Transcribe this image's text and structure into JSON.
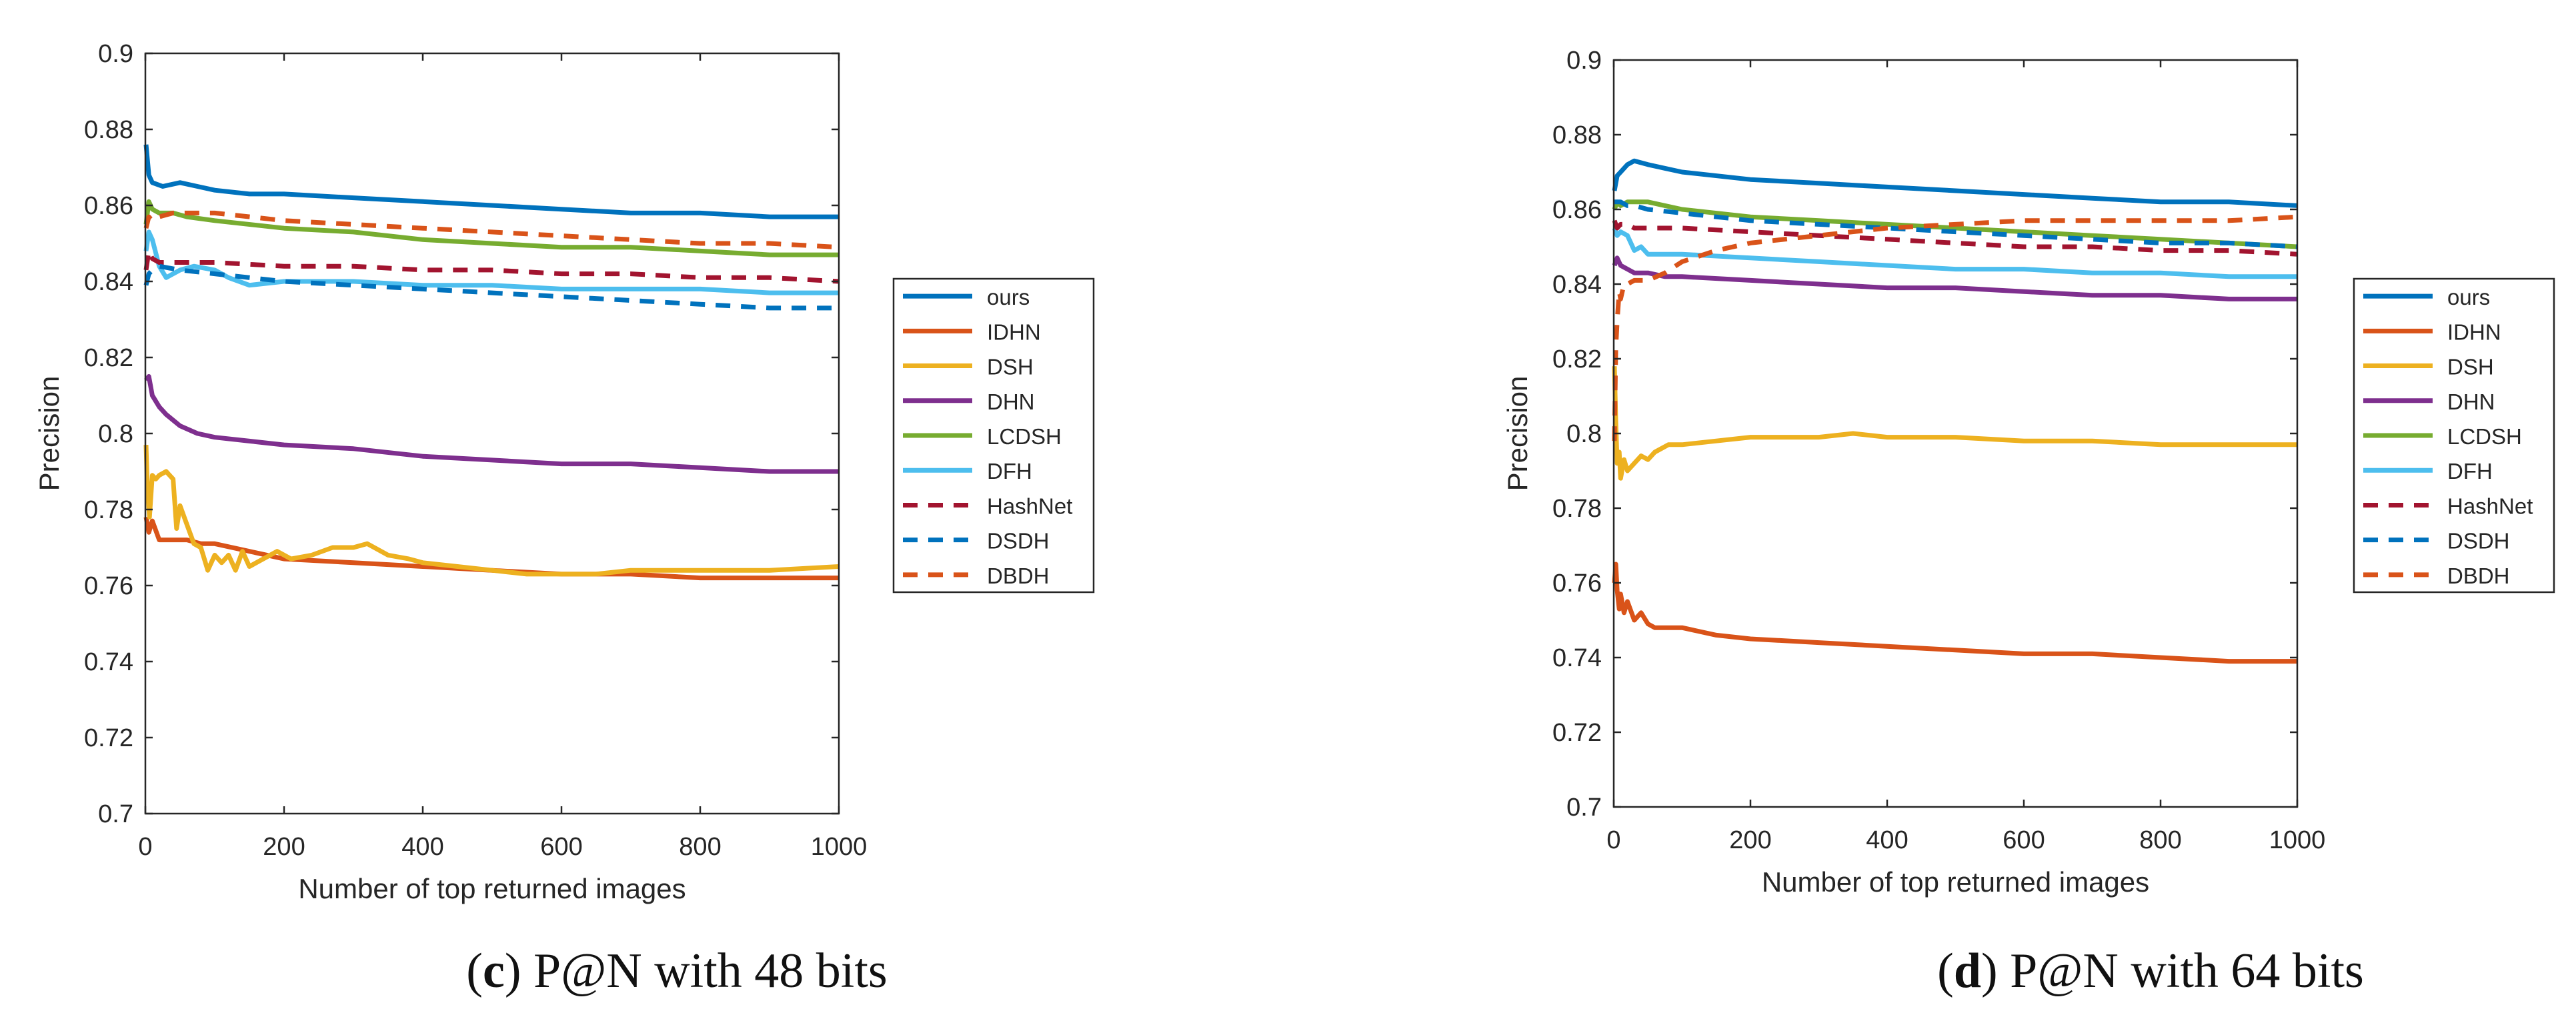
{
  "figure": {
    "panels": [
      {
        "caption_letter": "c",
        "caption_text": ") P@N with 48 bits"
      },
      {
        "caption_letter": "d",
        "caption_text": ") P@N with 64 bits"
      }
    ]
  },
  "chart_data": [
    {
      "type": "line",
      "title": "",
      "xlabel": "Number of top returned images",
      "ylabel": "Precision",
      "xlim": [
        0,
        1000
      ],
      "ylim": [
        0.7,
        0.9
      ],
      "xticks": [
        0,
        200,
        400,
        600,
        800,
        1000
      ],
      "xtick_labels": [
        "0",
        "200",
        "400",
        "600",
        "800",
        "1000"
      ],
      "yticks": [
        0.7,
        0.72,
        0.74,
        0.76,
        0.78,
        0.8,
        0.82,
        0.84,
        0.86,
        0.88,
        0.9
      ],
      "ytick_labels": [
        "0.7",
        "0.72",
        "0.74",
        "0.76",
        "0.78",
        "0.8",
        "0.82",
        "0.84",
        "0.86",
        "0.88",
        "0.9"
      ],
      "grid": false,
      "legend": "outside-right",
      "series": [
        {
          "name": "ours",
          "color": "#0072bd",
          "style": "solid",
          "x": [
            1,
            5,
            10,
            25,
            50,
            75,
            100,
            150,
            200,
            300,
            400,
            500,
            600,
            700,
            800,
            900,
            1000
          ],
          "y": [
            0.876,
            0.868,
            0.866,
            0.865,
            0.866,
            0.865,
            0.864,
            0.863,
            0.863,
            0.862,
            0.861,
            0.86,
            0.859,
            0.858,
            0.858,
            0.857,
            0.857
          ]
        },
        {
          "name": "IDHN",
          "color": "#d95319",
          "style": "solid",
          "x": [
            1,
            5,
            10,
            20,
            40,
            60,
            80,
            100,
            150,
            200,
            300,
            400,
            500,
            600,
            700,
            800,
            900,
            1000
          ],
          "y": [
            0.778,
            0.774,
            0.777,
            0.772,
            0.772,
            0.772,
            0.771,
            0.771,
            0.769,
            0.767,
            0.766,
            0.765,
            0.764,
            0.763,
            0.763,
            0.762,
            0.762,
            0.762
          ]
        },
        {
          "name": "DSH",
          "color": "#edb120",
          "style": "solid",
          "x": [
            1,
            3,
            6,
            10,
            15,
            20,
            30,
            40,
            45,
            50,
            60,
            70,
            80,
            90,
            100,
            110,
            120,
            130,
            140,
            150,
            170,
            190,
            210,
            240,
            270,
            300,
            320,
            350,
            380,
            400,
            450,
            500,
            550,
            600,
            650,
            700,
            800,
            900,
            1000
          ],
          "y": [
            0.797,
            0.785,
            0.778,
            0.789,
            0.788,
            0.789,
            0.79,
            0.788,
            0.775,
            0.781,
            0.776,
            0.771,
            0.77,
            0.764,
            0.768,
            0.766,
            0.768,
            0.764,
            0.769,
            0.765,
            0.767,
            0.769,
            0.767,
            0.768,
            0.77,
            0.77,
            0.771,
            0.768,
            0.767,
            0.766,
            0.765,
            0.764,
            0.763,
            0.763,
            0.763,
            0.764,
            0.764,
            0.764,
            0.765
          ]
        },
        {
          "name": "DHN",
          "color": "#7e2f8e",
          "style": "solid",
          "x": [
            1,
            5,
            10,
            20,
            30,
            50,
            75,
            100,
            150,
            200,
            300,
            400,
            500,
            600,
            700,
            800,
            900,
            1000
          ],
          "y": [
            0.814,
            0.815,
            0.81,
            0.807,
            0.805,
            0.802,
            0.8,
            0.799,
            0.798,
            0.797,
            0.796,
            0.794,
            0.793,
            0.792,
            0.792,
            0.791,
            0.79,
            0.79
          ]
        },
        {
          "name": "LCDSH",
          "color": "#77ac30",
          "style": "solid",
          "x": [
            1,
            5,
            10,
            20,
            40,
            60,
            100,
            200,
            300,
            400,
            500,
            600,
            700,
            800,
            900,
            1000
          ],
          "y": [
            0.855,
            0.861,
            0.859,
            0.858,
            0.858,
            0.857,
            0.856,
            0.854,
            0.853,
            0.851,
            0.85,
            0.849,
            0.849,
            0.848,
            0.847,
            0.847
          ]
        },
        {
          "name": "DFH",
          "color": "#4dbeee",
          "style": "solid",
          "x": [
            1,
            5,
            10,
            20,
            30,
            50,
            70,
            100,
            120,
            150,
            200,
            250,
            300,
            400,
            500,
            600,
            700,
            800,
            900,
            1000
          ],
          "y": [
            0.848,
            0.853,
            0.851,
            0.844,
            0.841,
            0.843,
            0.844,
            0.843,
            0.841,
            0.839,
            0.84,
            0.84,
            0.84,
            0.839,
            0.839,
            0.838,
            0.838,
            0.838,
            0.837,
            0.837
          ]
        },
        {
          "name": "HashNet",
          "color": "#a2142f",
          "style": "dashed",
          "x": [
            1,
            5,
            10,
            20,
            50,
            100,
            200,
            300,
            400,
            500,
            600,
            700,
            800,
            900,
            1000
          ],
          "y": [
            0.843,
            0.848,
            0.846,
            0.845,
            0.845,
            0.845,
            0.844,
            0.844,
            0.843,
            0.843,
            0.842,
            0.842,
            0.841,
            0.841,
            0.84
          ]
        },
        {
          "name": "DSDH",
          "color": "#0072bd",
          "style": "dashed",
          "x": [
            1,
            5,
            10,
            20,
            50,
            100,
            200,
            300,
            400,
            500,
            600,
            700,
            800,
            900,
            1000
          ],
          "y": [
            0.839,
            0.842,
            0.843,
            0.844,
            0.843,
            0.842,
            0.84,
            0.839,
            0.838,
            0.837,
            0.836,
            0.835,
            0.834,
            0.833,
            0.833
          ]
        },
        {
          "name": "DBDH",
          "color": "#d95319",
          "style": "dashed",
          "x": [
            1,
            5,
            10,
            20,
            40,
            60,
            100,
            200,
            300,
            400,
            500,
            600,
            700,
            800,
            900,
            1000
          ],
          "y": [
            0.854,
            0.857,
            0.856,
            0.857,
            0.858,
            0.858,
            0.858,
            0.856,
            0.855,
            0.854,
            0.853,
            0.852,
            0.851,
            0.85,
            0.85,
            0.849
          ]
        }
      ]
    },
    {
      "type": "line",
      "title": "",
      "xlabel": "Number of top returned images",
      "ylabel": "Precision",
      "xlim": [
        0,
        1000
      ],
      "ylim": [
        0.7,
        0.9
      ],
      "xticks": [
        0,
        200,
        400,
        600,
        800,
        1000
      ],
      "xtick_labels": [
        "0",
        "200",
        "400",
        "600",
        "800",
        "1000"
      ],
      "yticks": [
        0.7,
        0.72,
        0.74,
        0.76,
        0.78,
        0.8,
        0.82,
        0.84,
        0.86,
        0.88,
        0.9
      ],
      "ytick_labels": [
        "0.7",
        "0.72",
        "0.74",
        "0.76",
        "0.78",
        "0.8",
        "0.82",
        "0.84",
        "0.86",
        "0.88",
        "0.9"
      ],
      "grid": false,
      "legend": "outside-right",
      "series": [
        {
          "name": "ours",
          "color": "#0072bd",
          "style": "solid",
          "x": [
            1,
            5,
            10,
            20,
            30,
            50,
            75,
            100,
            200,
            300,
            400,
            500,
            600,
            700,
            800,
            900,
            1000
          ],
          "y": [
            0.865,
            0.869,
            0.87,
            0.872,
            0.873,
            0.872,
            0.871,
            0.87,
            0.868,
            0.867,
            0.866,
            0.865,
            0.864,
            0.863,
            0.862,
            0.862,
            0.861
          ]
        },
        {
          "name": "IDHN",
          "color": "#d95319",
          "style": "solid",
          "x": [
            1,
            3,
            5,
            8,
            10,
            15,
            20,
            30,
            40,
            50,
            60,
            80,
            100,
            150,
            200,
            300,
            400,
            500,
            600,
            700,
            800,
            900,
            1000
          ],
          "y": [
            0.76,
            0.765,
            0.758,
            0.753,
            0.757,
            0.752,
            0.755,
            0.75,
            0.752,
            0.749,
            0.748,
            0.748,
            0.748,
            0.746,
            0.745,
            0.744,
            0.743,
            0.742,
            0.741,
            0.741,
            0.74,
            0.739,
            0.739
          ]
        },
        {
          "name": "DSH",
          "color": "#edb120",
          "style": "solid",
          "x": [
            1,
            3,
            5,
            8,
            10,
            15,
            20,
            30,
            40,
            50,
            60,
            80,
            100,
            150,
            200,
            300,
            350,
            400,
            500,
            600,
            700,
            800,
            900,
            1000
          ],
          "y": [
            0.818,
            0.803,
            0.792,
            0.795,
            0.788,
            0.793,
            0.79,
            0.792,
            0.794,
            0.793,
            0.795,
            0.797,
            0.797,
            0.798,
            0.799,
            0.799,
            0.8,
            0.799,
            0.799,
            0.798,
            0.798,
            0.797,
            0.797,
            0.797
          ]
        },
        {
          "name": "DHN",
          "color": "#7e2f8e",
          "style": "solid",
          "x": [
            1,
            5,
            10,
            20,
            30,
            50,
            75,
            100,
            200,
            300,
            400,
            500,
            600,
            700,
            800,
            900,
            1000
          ],
          "y": [
            0.845,
            0.847,
            0.845,
            0.844,
            0.843,
            0.843,
            0.842,
            0.842,
            0.841,
            0.84,
            0.839,
            0.839,
            0.838,
            0.837,
            0.837,
            0.836,
            0.836
          ]
        },
        {
          "name": "LCDSH",
          "color": "#77ac30",
          "style": "solid",
          "x": [
            1,
            5,
            10,
            20,
            30,
            50,
            75,
            100,
            200,
            300,
            400,
            500,
            600,
            700,
            800,
            900,
            1000
          ],
          "y": [
            0.86,
            0.862,
            0.861,
            0.862,
            0.862,
            0.862,
            0.861,
            0.86,
            0.858,
            0.857,
            0.856,
            0.855,
            0.854,
            0.853,
            0.852,
            0.851,
            0.85
          ]
        },
        {
          "name": "DFH",
          "color": "#4dbeee",
          "style": "solid",
          "x": [
            1,
            5,
            10,
            20,
            30,
            40,
            50,
            75,
            100,
            200,
            300,
            400,
            500,
            600,
            700,
            800,
            900,
            1000
          ],
          "y": [
            0.855,
            0.853,
            0.854,
            0.853,
            0.849,
            0.85,
            0.848,
            0.848,
            0.848,
            0.847,
            0.846,
            0.845,
            0.844,
            0.844,
            0.843,
            0.843,
            0.842,
            0.842
          ]
        },
        {
          "name": "HashNet",
          "color": "#a2142f",
          "style": "dashed",
          "x": [
            1,
            5,
            10,
            20,
            30,
            50,
            100,
            200,
            300,
            400,
            500,
            600,
            700,
            800,
            900,
            1000
          ],
          "y": [
            0.857,
            0.855,
            0.856,
            0.856,
            0.855,
            0.855,
            0.855,
            0.854,
            0.853,
            0.852,
            0.851,
            0.85,
            0.85,
            0.849,
            0.849,
            0.848
          ]
        },
        {
          "name": "DSDH",
          "color": "#0072bd",
          "style": "dashed",
          "x": [
            1,
            5,
            10,
            20,
            30,
            50,
            100,
            200,
            300,
            400,
            500,
            600,
            700,
            800,
            900,
            1000
          ],
          "y": [
            0.862,
            0.862,
            0.862,
            0.861,
            0.861,
            0.86,
            0.859,
            0.857,
            0.856,
            0.855,
            0.854,
            0.853,
            0.852,
            0.851,
            0.851,
            0.85
          ]
        },
        {
          "name": "DBDH",
          "color": "#d95319",
          "style": "dashed",
          "x": [
            1,
            3,
            5,
            8,
            10,
            15,
            20,
            30,
            50,
            75,
            100,
            150,
            200,
            300,
            400,
            500,
            600,
            700,
            800,
            900,
            1000
          ],
          "y": [
            0.798,
            0.823,
            0.83,
            0.838,
            0.836,
            0.84,
            0.84,
            0.841,
            0.841,
            0.843,
            0.846,
            0.849,
            0.851,
            0.853,
            0.855,
            0.856,
            0.857,
            0.857,
            0.857,
            0.857,
            0.858
          ]
        }
      ]
    }
  ]
}
